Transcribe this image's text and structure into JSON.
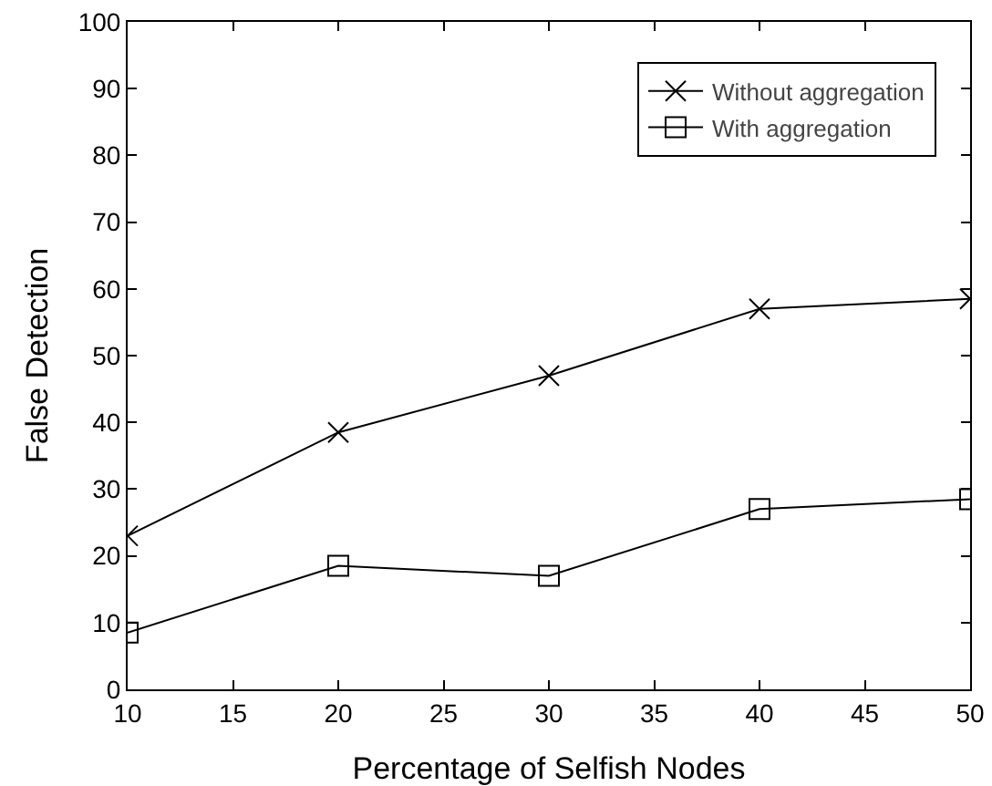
{
  "chart_data": {
    "type": "line",
    "xlabel": "Percentage of Selfish Nodes",
    "ylabel": "False Detection",
    "x": [
      10,
      20,
      30,
      40,
      50
    ],
    "series": [
      {
        "name": "Without aggregation",
        "color": "#000000",
        "marker": "cross",
        "values": [
          23,
          38.5,
          47,
          57,
          58.5
        ]
      },
      {
        "name": "With aggregation",
        "color": "#000000",
        "marker": "square",
        "values": [
          8.5,
          18.5,
          17,
          27,
          28.5
        ]
      }
    ],
    "xlim": [
      10,
      50
    ],
    "xticks": [
      10,
      15,
      20,
      25,
      30,
      35,
      40,
      45,
      50
    ],
    "ylim": [
      0,
      100
    ],
    "yticks": [
      0,
      10,
      20,
      30,
      40,
      50,
      60,
      70,
      80,
      90,
      100
    ],
    "grid": false,
    "legend": "top right",
    "line_style": "solid"
  }
}
